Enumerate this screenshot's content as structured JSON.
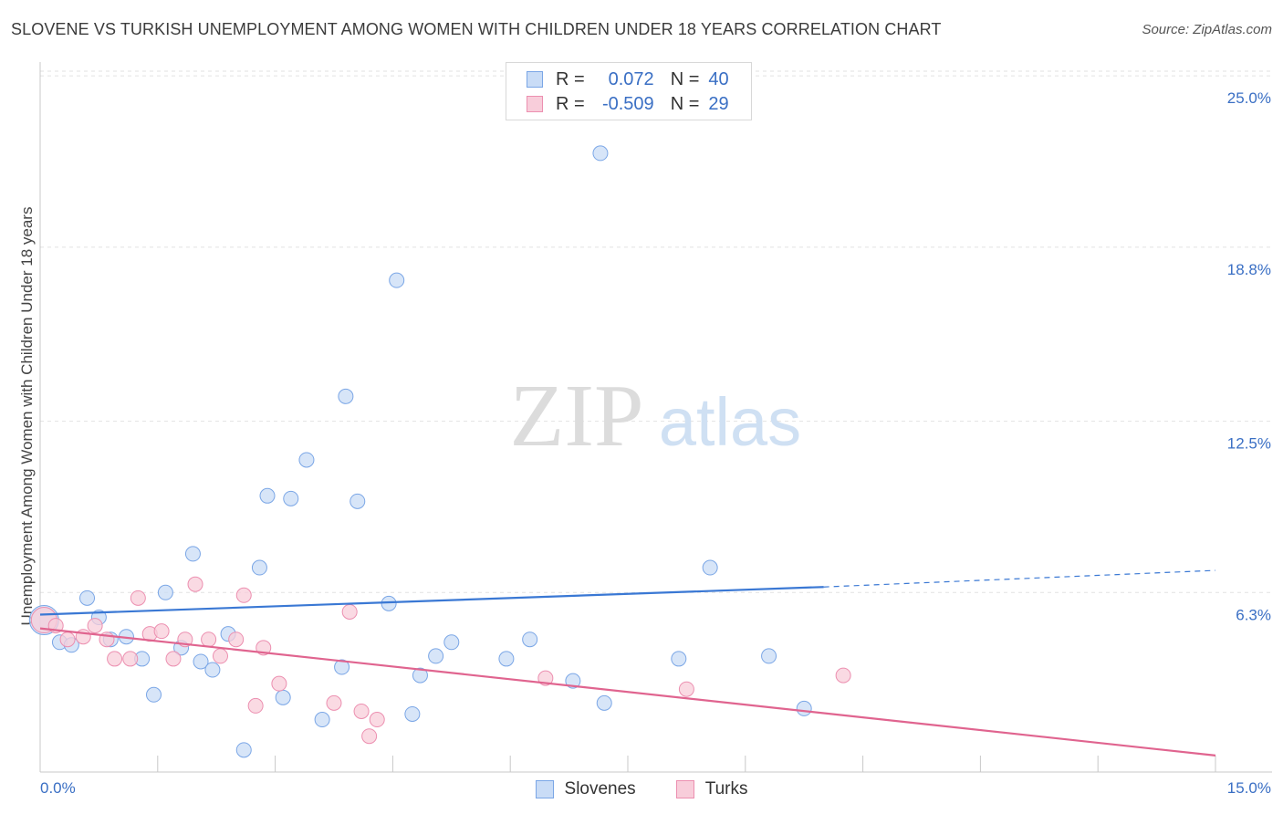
{
  "header": {
    "title": "SLOVENE VS TURKISH UNEMPLOYMENT AMONG WOMEN WITH CHILDREN UNDER 18 YEARS CORRELATION CHART",
    "source": "Source: ZipAtlas.com"
  },
  "watermark": {
    "zip": "ZIP",
    "atlas": "atlas"
  },
  "legend": {
    "rows": [
      {
        "r_label": "R =",
        "r_value": "0.072",
        "n_label": "N =",
        "n_value": "40",
        "color": "#7aa6e6",
        "fill": "#c9dcf6"
      },
      {
        "r_label": "R =",
        "r_value": "-0.509",
        "n_label": "N =",
        "n_value": "29",
        "color": "#ec8fb0",
        "fill": "#f8cdda"
      }
    ]
  },
  "bottom_legend": {
    "items": [
      {
        "label": "Slovenes",
        "color": "#7aa6e6",
        "fill": "#c9dcf6"
      },
      {
        "label": "Turks",
        "color": "#ec8fb0",
        "fill": "#f8cdda"
      }
    ]
  },
  "chart_data": {
    "type": "scatter",
    "title": "SLOVENE VS TURKISH UNEMPLOYMENT AMONG WOMEN WITH CHILDREN UNDER 18 YEARS CORRELATION CHART",
    "xlabel": "",
    "ylabel": "Unemployment Among Women with Children Under 18 years",
    "xlim": [
      0,
      15
    ],
    "ylim": [
      0,
      25.5
    ],
    "x_tick_labels": [
      "0.0%",
      "15.0%"
    ],
    "y_ticks": [
      6.3,
      12.5,
      18.8,
      25.0
    ],
    "y_tick_labels": [
      "6.3%",
      "12.5%",
      "18.8%",
      "25.0%"
    ],
    "grid": true,
    "legend_position": "top-center",
    "series": [
      {
        "name": "Slovenes",
        "color": "#3a78d4",
        "fill": "#c9dcf6",
        "points": [
          [
            0.05,
            5.3
          ],
          [
            0.25,
            4.5
          ],
          [
            0.4,
            4.4
          ],
          [
            0.6,
            6.1
          ],
          [
            0.75,
            5.4
          ],
          [
            0.9,
            4.6
          ],
          [
            1.1,
            4.7
          ],
          [
            1.3,
            3.9
          ],
          [
            1.45,
            2.6
          ],
          [
            1.6,
            6.3
          ],
          [
            1.8,
            4.3
          ],
          [
            1.95,
            7.7
          ],
          [
            2.05,
            3.8
          ],
          [
            2.2,
            3.5
          ],
          [
            2.4,
            4.8
          ],
          [
            2.6,
            0.6
          ],
          [
            2.8,
            7.2
          ],
          [
            2.9,
            9.8
          ],
          [
            3.1,
            2.5
          ],
          [
            3.2,
            9.7
          ],
          [
            3.4,
            11.1
          ],
          [
            3.6,
            1.7
          ],
          [
            3.85,
            3.6
          ],
          [
            3.9,
            13.4
          ],
          [
            4.05,
            9.6
          ],
          [
            4.45,
            5.9
          ],
          [
            4.55,
            17.6
          ],
          [
            4.75,
            1.9
          ],
          [
            4.85,
            3.3
          ],
          [
            5.05,
            4.0
          ],
          [
            5.25,
            4.5
          ],
          [
            5.95,
            3.9
          ],
          [
            6.25,
            4.6
          ],
          [
            6.8,
            3.1
          ],
          [
            7.15,
            22.2
          ],
          [
            7.2,
            2.3
          ],
          [
            8.15,
            3.9
          ],
          [
            8.55,
            7.2
          ],
          [
            9.3,
            4.0
          ],
          [
            9.75,
            2.1
          ]
        ],
        "trend": {
          "x": [
            0,
            10
          ],
          "y": [
            5.5,
            6.5
          ],
          "dashed_extension_to": [
            15,
            7.1
          ]
        }
      },
      {
        "name": "Turks",
        "color": "#e0648f",
        "fill": "#f8cdda",
        "points": [
          [
            0.05,
            5.3
          ],
          [
            0.2,
            5.1
          ],
          [
            0.35,
            4.6
          ],
          [
            0.55,
            4.7
          ],
          [
            0.7,
            5.1
          ],
          [
            0.85,
            4.6
          ],
          [
            0.95,
            3.9
          ],
          [
            1.15,
            3.9
          ],
          [
            1.25,
            6.1
          ],
          [
            1.4,
            4.8
          ],
          [
            1.55,
            4.9
          ],
          [
            1.7,
            3.9
          ],
          [
            1.85,
            4.6
          ],
          [
            1.98,
            6.6
          ],
          [
            2.15,
            4.6
          ],
          [
            2.3,
            4.0
          ],
          [
            2.5,
            4.6
          ],
          [
            2.6,
            6.2
          ],
          [
            2.75,
            2.2
          ],
          [
            2.85,
            4.3
          ],
          [
            3.05,
            3.0
          ],
          [
            3.75,
            2.3
          ],
          [
            3.95,
            5.6
          ],
          [
            4.1,
            2.0
          ],
          [
            4.2,
            1.1
          ],
          [
            4.3,
            1.7
          ],
          [
            6.45,
            3.2
          ],
          [
            8.25,
            2.8
          ],
          [
            10.25,
            3.3
          ]
        ],
        "trend": {
          "x": [
            0,
            15
          ],
          "y": [
            5.0,
            0.4
          ]
        }
      }
    ]
  }
}
